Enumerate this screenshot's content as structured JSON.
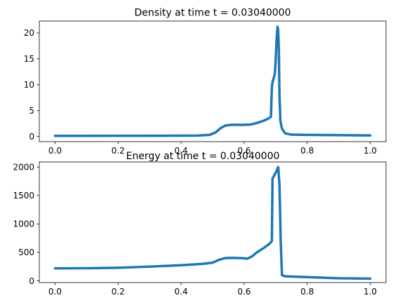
{
  "chart_data": [
    {
      "type": "line",
      "title": "Density at time t =     0.03040000",
      "xlabel": "",
      "ylabel": "",
      "xlim": [
        -0.05,
        1.05
      ],
      "ylim": [
        -1.0,
        22.3
      ],
      "xticks": [
        0.0,
        0.2,
        0.4,
        0.6,
        0.8,
        1.0
      ],
      "xtick_labels": [
        "0.0",
        "0.2",
        "0.4",
        "0.6",
        "0.8",
        "1.0"
      ],
      "yticks": [
        0,
        5,
        10,
        15,
        20
      ],
      "ytick_labels": [
        "0",
        "5",
        "10",
        "15",
        "20"
      ],
      "grid": false,
      "series": [
        {
          "color": "#1f77b4",
          "x": [
            0.0,
            0.1,
            0.2,
            0.3,
            0.4,
            0.45,
            0.49,
            0.51,
            0.525,
            0.54,
            0.56,
            0.6,
            0.62,
            0.64,
            0.66,
            0.675,
            0.685,
            0.688,
            0.69,
            0.697,
            0.7,
            0.703,
            0.706,
            0.708,
            0.71,
            0.712,
            0.715,
            0.72,
            0.73,
            0.75,
            0.8,
            0.9,
            1.0
          ],
          "y": [
            0.12,
            0.12,
            0.13,
            0.14,
            0.15,
            0.17,
            0.3,
            0.8,
            1.6,
            2.1,
            2.25,
            2.25,
            2.3,
            2.6,
            3.0,
            3.4,
            3.8,
            9.5,
            10.5,
            12.0,
            14.5,
            19.0,
            21.2,
            20.5,
            17.0,
            8.0,
            3.0,
            1.5,
            0.6,
            0.35,
            0.3,
            0.25,
            0.2
          ]
        }
      ]
    },
    {
      "type": "line",
      "title": "Energy at time t =     0.03040000",
      "xlabel": "",
      "ylabel": "",
      "xlim": [
        -0.05,
        1.05
      ],
      "ylim": [
        -30,
        2090
      ],
      "xticks": [
        0.0,
        0.2,
        0.4,
        0.6,
        0.8,
        1.0
      ],
      "xtick_labels": [
        "0.0",
        "0.2",
        "0.4",
        "0.6",
        "0.8",
        "1.0"
      ],
      "yticks": [
        0,
        500,
        1000,
        1500,
        2000
      ],
      "ytick_labels": [
        "0",
        "500",
        "1000",
        "1500",
        "2000"
      ],
      "grid": false,
      "series": [
        {
          "color": "#1f77b4",
          "x": [
            0.0,
            0.1,
            0.2,
            0.3,
            0.4,
            0.47,
            0.5,
            0.52,
            0.54,
            0.56,
            0.59,
            0.61,
            0.625,
            0.64,
            0.66,
            0.68,
            0.688,
            0.69,
            0.7,
            0.705,
            0.708,
            0.712,
            0.716,
            0.72,
            0.73,
            0.8,
            0.9,
            1.0
          ],
          "y": [
            220,
            222,
            230,
            250,
            275,
            300,
            320,
            370,
            400,
            405,
            400,
            390,
            430,
            500,
            570,
            650,
            700,
            1800,
            1900,
            1960,
            2000,
            1700,
            700,
            100,
            80,
            65,
            45,
            40
          ]
        }
      ]
    }
  ]
}
